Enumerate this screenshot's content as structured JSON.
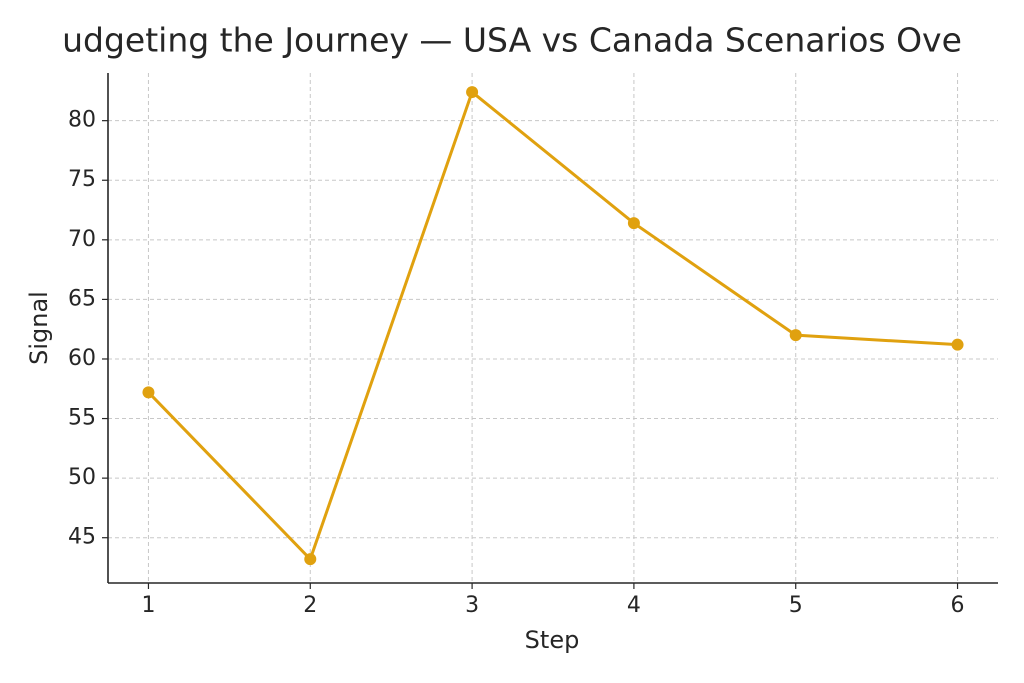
{
  "chart_data": {
    "type": "line",
    "title": "udgeting the Journey — USA vs Canada Scenarios Ove",
    "x_label": "Step",
    "y_label": "Signal",
    "x": [
      1,
      2,
      3,
      4,
      5,
      6
    ],
    "values": [
      57.2,
      43.2,
      82.4,
      71.4,
      62.0,
      61.2
    ],
    "color": "#e0a10f",
    "xlim": [
      0.75,
      6.25
    ],
    "xticks": [
      1,
      2,
      3,
      4,
      5,
      6
    ],
    "ylim": [
      41.2,
      84.0
    ],
    "yticks": [
      45,
      50,
      55,
      60,
      65,
      70,
      75,
      80
    ],
    "grid": true
  }
}
